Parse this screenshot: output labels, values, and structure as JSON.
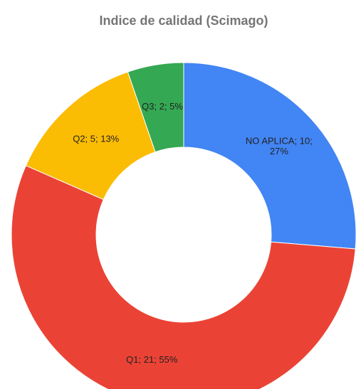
{
  "chart_data": {
    "type": "donut",
    "title": "Indice de calidad (Scimago)",
    "values": [
      10,
      21,
      5,
      2
    ],
    "value_labels": [
      "NO APLICA; 10; 27%",
      "Q1; 21; 55%",
      "Q2; 5; 13%",
      "Q3; 2; 5%"
    ],
    "colors": [
      "#4285f4",
      "#ea4335",
      "#fbbc04",
      "#34a853"
    ]
  }
}
